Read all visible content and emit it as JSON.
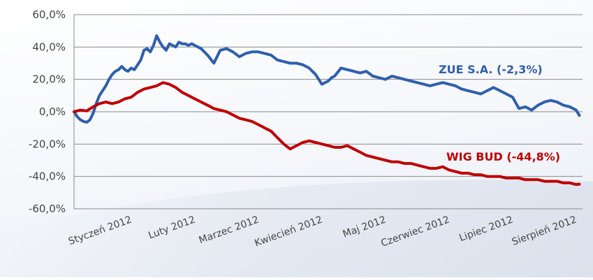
{
  "chart_data": {
    "type": "line",
    "title": "",
    "xlabel": "",
    "ylabel": "",
    "ylim": [
      -60,
      60
    ],
    "y_ticks": [
      "60,0%",
      "40,0%",
      "20,0%",
      "0,0%",
      "-20,0%",
      "-40,0%",
      "-60,0%"
    ],
    "y_tick_values": [
      60,
      40,
      20,
      0,
      -20,
      -40,
      -60
    ],
    "x_tick_labels": [
      "Styczeń 2012",
      "Luty 2012",
      "Marzec 2012",
      "Kwiecień 2012",
      "Maj 2012",
      "Czerwiec 2012",
      "Lipiec 2012",
      "Sierpień 2012"
    ],
    "x_range": [
      0,
      8
    ],
    "grid": "horizontal",
    "colors": {
      "zue": "#2e5fae",
      "wig_bud": "#c00000",
      "grid": "#8a8a8a"
    },
    "series": [
      {
        "name": "ZUE S.A. (-2,3%)",
        "color": "#2e5fae",
        "x": [
          0,
          0.05,
          0.1,
          0.15,
          0.2,
          0.25,
          0.3,
          0.35,
          0.4,
          0.45,
          0.5,
          0.55,
          0.6,
          0.65,
          0.7,
          0.75,
          0.8,
          0.85,
          0.9,
          0.95,
          1.0,
          1.05,
          1.1,
          1.15,
          1.2,
          1.25,
          1.3,
          1.35,
          1.4,
          1.45,
          1.5,
          1.55,
          1.6,
          1.65,
          1.7,
          1.75,
          1.8,
          1.85,
          1.9,
          1.95,
          2.0,
          2.1,
          2.2,
          2.3,
          2.4,
          2.5,
          2.6,
          2.7,
          2.8,
          2.9,
          3.0,
          3.1,
          3.2,
          3.3,
          3.4,
          3.5,
          3.6,
          3.7,
          3.8,
          3.9,
          4.0,
          4.05,
          4.1,
          4.2,
          4.3,
          4.4,
          4.5,
          4.6,
          4.7,
          4.8,
          4.9,
          5.0,
          5.1,
          5.2,
          5.3,
          5.4,
          5.5,
          5.6,
          5.7,
          5.8,
          5.9,
          6.0,
          6.1,
          6.2,
          6.3,
          6.4,
          6.5,
          6.6,
          6.7,
          6.8,
          6.9,
          7.0,
          7.1,
          7.2,
          7.3,
          7.4,
          7.5,
          7.6,
          7.7,
          7.8,
          7.9,
          7.95
        ],
        "values": [
          0,
          -3,
          -5,
          -6,
          -6.5,
          -5,
          -1,
          5,
          10,
          13,
          16,
          20,
          23,
          25,
          26,
          28,
          26,
          25,
          27,
          26,
          29,
          32,
          38,
          39,
          37,
          41,
          47,
          43,
          40,
          38,
          42,
          41,
          40,
          43,
          42,
          42,
          41,
          42,
          41,
          40,
          39,
          35,
          30,
          38,
          39,
          37,
          34,
          36,
          37,
          37,
          36,
          35,
          32,
          31,
          30,
          30,
          29,
          27,
          23,
          17,
          19,
          21,
          22,
          27,
          26,
          25,
          24,
          25,
          22,
          21,
          20,
          22,
          21,
          20,
          19,
          18,
          17,
          16,
          17,
          18,
          17,
          16,
          14,
          13,
          12,
          11,
          13,
          15,
          13,
          11,
          9,
          2,
          3,
          1,
          4,
          6,
          7,
          6,
          4,
          3,
          1,
          -2.3
        ]
      },
      {
        "name": "WIG BUD (-44,8%)",
        "color": "#c00000",
        "x": [
          0,
          0.1,
          0.2,
          0.3,
          0.4,
          0.5,
          0.6,
          0.7,
          0.8,
          0.9,
          1.0,
          1.1,
          1.2,
          1.3,
          1.4,
          1.5,
          1.6,
          1.7,
          1.8,
          1.9,
          2.0,
          2.1,
          2.2,
          2.3,
          2.4,
          2.5,
          2.6,
          2.7,
          2.8,
          2.9,
          3.0,
          3.1,
          3.2,
          3.3,
          3.4,
          3.5,
          3.6,
          3.7,
          3.8,
          3.9,
          4.0,
          4.1,
          4.2,
          4.3,
          4.4,
          4.5,
          4.6,
          4.7,
          4.8,
          4.9,
          5.0,
          5.1,
          5.2,
          5.3,
          5.4,
          5.5,
          5.6,
          5.7,
          5.8,
          5.9,
          6.0,
          6.1,
          6.2,
          6.3,
          6.4,
          6.5,
          6.6,
          6.7,
          6.8,
          6.9,
          7.0,
          7.1,
          7.2,
          7.3,
          7.4,
          7.5,
          7.6,
          7.7,
          7.8,
          7.9,
          7.95
        ],
        "values": [
          0,
          1,
          0.5,
          3,
          5,
          6,
          5,
          6,
          8,
          9,
          12,
          14,
          15,
          16,
          18,
          17,
          15,
          12,
          10,
          8,
          6,
          4,
          2,
          1,
          0,
          -2,
          -4,
          -5,
          -6,
          -8,
          -10,
          -12,
          -16,
          -20,
          -23,
          -21,
          -19,
          -18,
          -19,
          -20,
          -21,
          -22,
          -22,
          -21,
          -23,
          -25,
          -27,
          -28,
          -29,
          -30,
          -31,
          -31,
          -32,
          -32,
          -33,
          -34,
          -35,
          -35,
          -34,
          -36,
          -37,
          -38,
          -38,
          -39,
          -39,
          -40,
          -40,
          -40,
          -41,
          -41,
          -41,
          -42,
          -42,
          -42,
          -43,
          -43,
          -43,
          -44,
          -44,
          -45,
          -44.8
        ]
      }
    ]
  }
}
